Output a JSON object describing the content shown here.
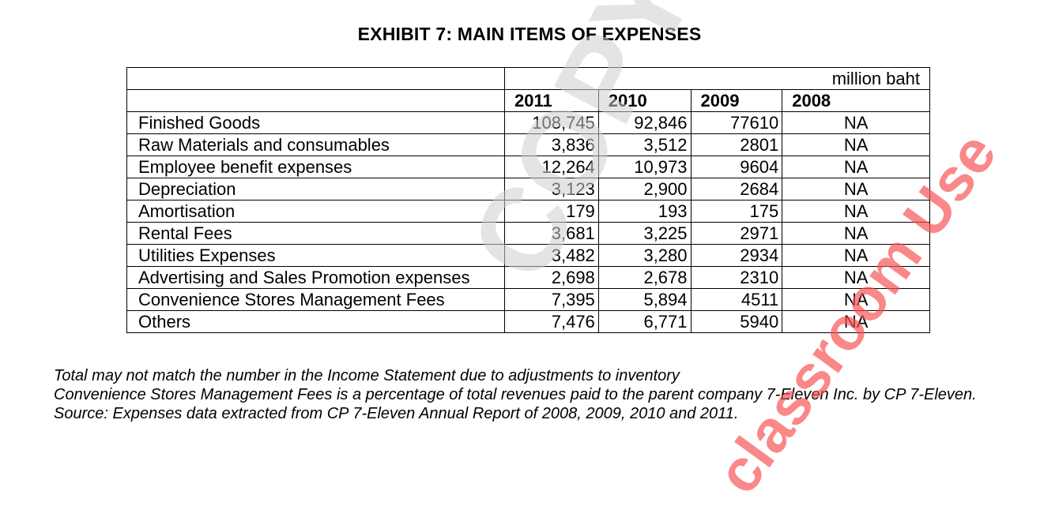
{
  "title": "EXHIBIT 7: MAIN ITEMS OF EXPENSES",
  "unit": "million baht",
  "columns": [
    "2011",
    "2010",
    "2009",
    "2008"
  ],
  "rows": [
    {
      "label": "Finished Goods",
      "values": [
        "108,745",
        "92,846",
        "77610",
        "NA"
      ]
    },
    {
      "label": "Raw Materials and consumables",
      "values": [
        "3,836",
        "3,512",
        "2801",
        "NA"
      ]
    },
    {
      "label": "Employee benefit expenses",
      "values": [
        "12,264",
        "10,973",
        "9604",
        "NA"
      ]
    },
    {
      "label": "Depreciation",
      "values": [
        "3,123",
        "2,900",
        "2684",
        "NA"
      ]
    },
    {
      "label": "Amortisation",
      "values": [
        "179",
        "193",
        "175",
        "NA"
      ]
    },
    {
      "label": "Rental Fees",
      "values": [
        "3,681",
        "3,225",
        "2971",
        "NA"
      ]
    },
    {
      "label": "Utilities Expenses",
      "values": [
        "3,482",
        "3,280",
        "2934",
        "NA"
      ]
    },
    {
      "label": "Advertising and Sales Promotion expenses",
      "values": [
        "2,698",
        "2,678",
        "2310",
        "NA"
      ]
    },
    {
      "label": "Convenience Stores Management Fees",
      "values": [
        "7,395",
        "5,894",
        "4511",
        "NA"
      ]
    },
    {
      "label": "Others",
      "values": [
        "7,476",
        "6,771",
        "5940",
        "NA"
      ]
    }
  ],
  "notes": [
    "Total may not match the number in the Income Statement due to adjustments to inventory",
    "Convenience Stores Management Fees is a percentage of total revenues paid to the parent company 7-Eleven Inc. by CP 7-Eleven.",
    "Source: Expenses data extracted from CP 7-Eleven Annual Report of 2008, 2009, 2010 and 2011."
  ],
  "watermarks": {
    "copy": "COPY",
    "classroom": "classroom Use",
    "classroom_color": "#f85050"
  }
}
